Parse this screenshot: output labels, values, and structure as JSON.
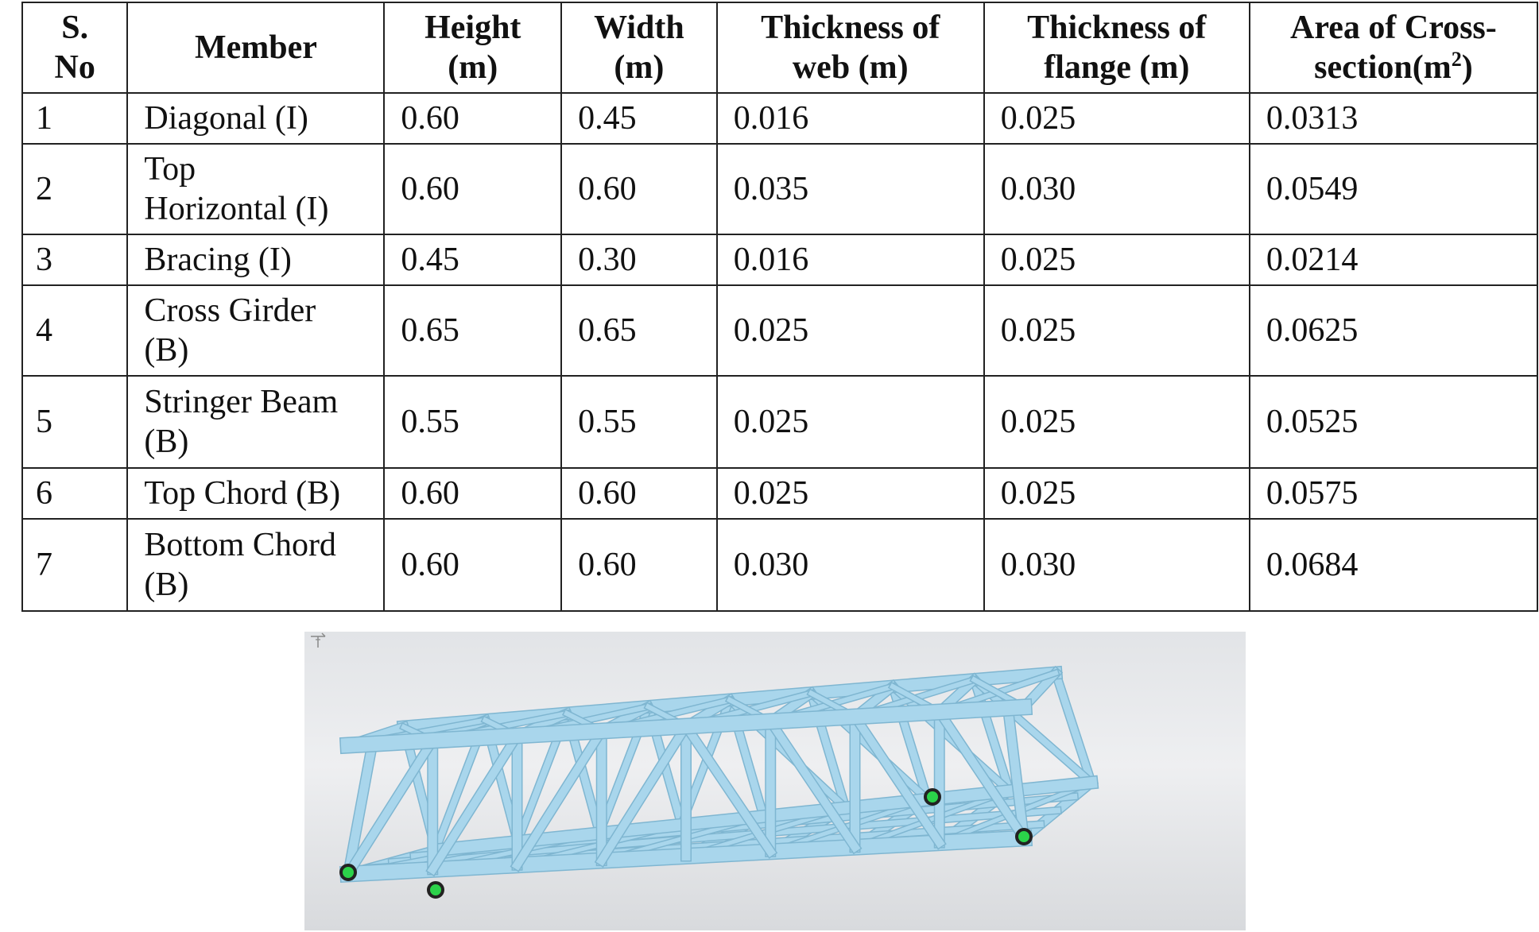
{
  "table": {
    "headers": [
      [
        "S.",
        "No"
      ],
      [
        "Member"
      ],
      [
        "Height",
        "(m)"
      ],
      [
        "Width",
        "(m)"
      ],
      [
        "Thickness of",
        "web (m)"
      ],
      [
        "Thickness of",
        "flange (m)"
      ],
      [
        "Area of Cross-",
        "section(m",
        "2",
        ")"
      ]
    ],
    "rows": [
      {
        "sno": "1",
        "member": [
          "Diagonal (I)"
        ],
        "height": "0.60",
        "width": "0.45",
        "web": "0.016",
        "flange": "0.025",
        "area": "0.0313"
      },
      {
        "sno": "2",
        "member": [
          "Top",
          "Horizontal (I)"
        ],
        "height": "0.60",
        "width": "0.60",
        "web": "0.035",
        "flange": "0.030",
        "area": "0.0549"
      },
      {
        "sno": "3",
        "member": [
          "Bracing (I)"
        ],
        "height": "0.45",
        "width": "0.30",
        "web": "0.016",
        "flange": "0.025",
        "area": "0.0214"
      },
      {
        "sno": "4",
        "member": [
          "Cross Girder",
          "(B)"
        ],
        "height": "0.65",
        "width": "0.65",
        "web": "0.025",
        "flange": "0.025",
        "area": "0.0625"
      },
      {
        "sno": "5",
        "member": [
          "Stringer Beam",
          "(B)"
        ],
        "height": "0.55",
        "width": "0.55",
        "web": "0.025",
        "flange": "0.025",
        "area": "0.0525"
      },
      {
        "sno": "6",
        "member": [
          "Top Chord (B)"
        ],
        "height": "0.60",
        "width": "0.60",
        "web": "0.025",
        "flange": "0.025",
        "area": "0.0575"
      },
      {
        "sno": "7",
        "member": [
          "Bottom Chord",
          "(B)"
        ],
        "height": "0.60",
        "width": "0.60",
        "web": "0.030",
        "flange": "0.030",
        "area": "0.0684"
      }
    ]
  },
  "figure": {
    "background_color": "#e6e8eb",
    "member_color": "#a9d6ec",
    "member_shadow_color": "#7fb6d1",
    "support_color": "#2bd24a",
    "icons": [
      "axis-icon",
      "support-node-icon"
    ]
  }
}
